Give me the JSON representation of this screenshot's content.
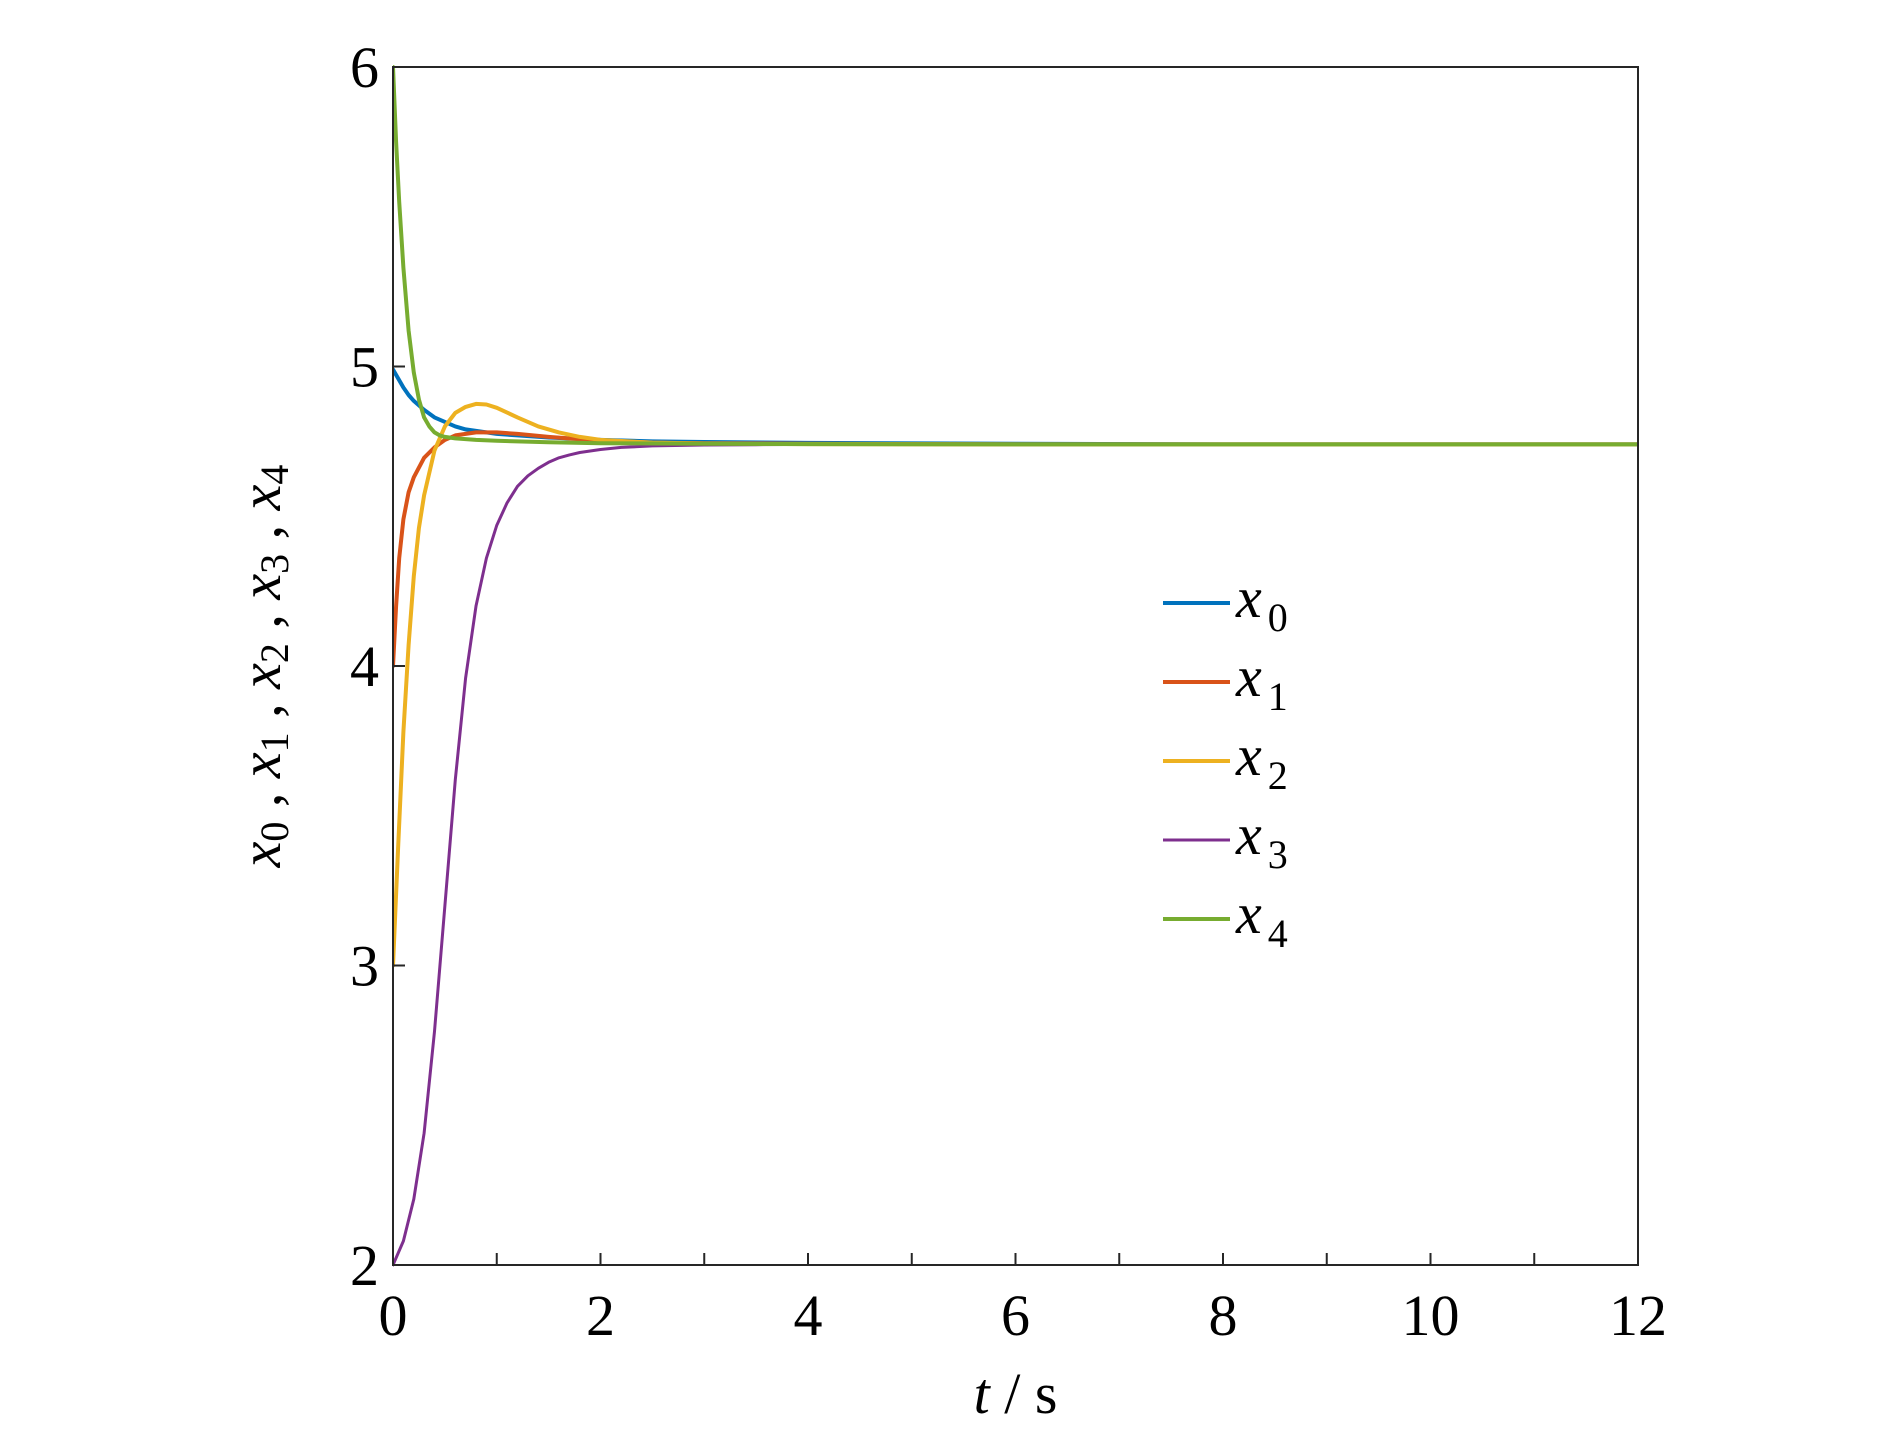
{
  "chart_data": {
    "type": "line",
    "xlabel": {
      "var": "t",
      "sep": " / ",
      "unit": "s"
    },
    "ylabel": [
      {
        "base": "x",
        "sub": "0",
        "sep": " , "
      },
      {
        "base": "x",
        "sub": "1",
        "sep": " , "
      },
      {
        "base": "x",
        "sub": "2",
        "sep": " , "
      },
      {
        "base": "x",
        "sub": "3",
        "sep": " , "
      },
      {
        "base": "x",
        "sub": "4",
        "sep": ""
      }
    ],
    "xlim": [
      0,
      12
    ],
    "ylim": [
      2,
      6
    ],
    "xticks": [
      "0",
      "2",
      "4",
      "6",
      "8",
      "10",
      "12"
    ],
    "yticks": [
      "2",
      "3",
      "4",
      "5",
      "6"
    ],
    "grid": false,
    "legend_position": "center-right",
    "series": [
      {
        "name": "x0",
        "base": "x",
        "sub": "0",
        "color": "#0072BD",
        "width": 4,
        "x": [
          0,
          0.05,
          0.1,
          0.15,
          0.2,
          0.3,
          0.4,
          0.5,
          0.6,
          0.7,
          0.8,
          1.0,
          1.2,
          1.5,
          2.0,
          2.5,
          3,
          4,
          6,
          8,
          12
        ],
        "y": [
          4.99,
          4.96,
          4.93,
          4.905,
          4.885,
          4.855,
          4.83,
          4.815,
          4.8,
          4.79,
          4.785,
          4.775,
          4.77,
          4.763,
          4.755,
          4.75,
          4.748,
          4.745,
          4.742,
          4.74,
          4.74
        ]
      },
      {
        "name": "x1",
        "base": "x",
        "sub": "1",
        "color": "#D95319",
        "width": 4,
        "x": [
          0,
          0.03,
          0.06,
          0.1,
          0.15,
          0.2,
          0.3,
          0.4,
          0.5,
          0.6,
          0.8,
          1.0,
          1.2,
          1.5,
          2.0,
          2.5,
          3,
          4,
          6,
          12
        ],
        "y": [
          4.0,
          4.2,
          4.36,
          4.49,
          4.58,
          4.63,
          4.695,
          4.73,
          4.755,
          4.77,
          4.78,
          4.78,
          4.775,
          4.765,
          4.752,
          4.746,
          4.744,
          4.742,
          4.74,
          4.74
        ]
      },
      {
        "name": "x2",
        "base": "x",
        "sub": "2",
        "color": "#EDB120",
        "width": 4,
        "x": [
          0,
          0.05,
          0.1,
          0.15,
          0.2,
          0.25,
          0.3,
          0.4,
          0.5,
          0.6,
          0.7,
          0.8,
          0.9,
          1.0,
          1.2,
          1.4,
          1.6,
          1.8,
          2.0,
          2.5,
          3,
          4,
          6,
          12
        ],
        "y": [
          3.0,
          3.4,
          3.78,
          4.07,
          4.3,
          4.46,
          4.57,
          4.72,
          4.8,
          4.845,
          4.865,
          4.875,
          4.873,
          4.862,
          4.83,
          4.8,
          4.78,
          4.765,
          4.755,
          4.746,
          4.743,
          4.741,
          4.74,
          4.74
        ]
      },
      {
        "name": "x3",
        "base": "x",
        "sub": "3",
        "color": "#7E2F8E",
        "width": 3,
        "x": [
          0,
          0.1,
          0.2,
          0.3,
          0.4,
          0.5,
          0.6,
          0.7,
          0.8,
          0.9,
          1.0,
          1.1,
          1.2,
          1.3,
          1.4,
          1.5,
          1.6,
          1.7,
          1.8,
          2.0,
          2.2,
          2.5,
          3.0,
          3.5,
          4,
          6,
          12
        ],
        "y": [
          2.0,
          2.08,
          2.22,
          2.44,
          2.78,
          3.2,
          3.62,
          3.96,
          4.2,
          4.36,
          4.47,
          4.545,
          4.6,
          4.635,
          4.66,
          4.68,
          4.695,
          4.705,
          4.713,
          4.723,
          4.73,
          4.735,
          4.738,
          4.739,
          4.74,
          4.74,
          4.74
        ]
      },
      {
        "name": "x4",
        "base": "x",
        "sub": "4",
        "color": "#77AC30",
        "width": 4,
        "x": [
          0,
          0.03,
          0.06,
          0.1,
          0.15,
          0.2,
          0.25,
          0.3,
          0.35,
          0.4,
          0.45,
          0.5,
          0.6,
          0.8,
          1.0,
          1.5,
          2.0,
          3,
          4,
          6,
          12
        ],
        "y": [
          6.0,
          5.75,
          5.55,
          5.33,
          5.12,
          4.98,
          4.89,
          4.83,
          4.8,
          4.78,
          4.77,
          4.765,
          4.76,
          4.755,
          4.752,
          4.747,
          4.744,
          4.742,
          4.741,
          4.74,
          4.74
        ]
      }
    ]
  }
}
